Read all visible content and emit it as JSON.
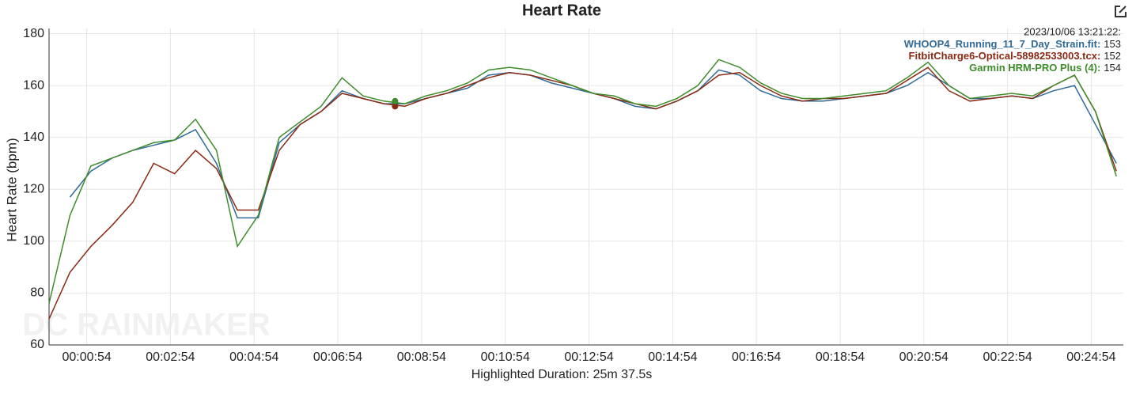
{
  "chart_data": {
    "type": "line",
    "title": "Heart Rate",
    "y_label": "Heart Rate (bpm)",
    "x_label": "Highlighted Duration: 25m 37.5s",
    "watermark": "DC RAINMAKER",
    "grid": true,
    "legend": "top-right",
    "xlim": [
      0,
      1540
    ],
    "ylim": [
      60,
      182
    ],
    "yticks": [
      60,
      80,
      100,
      120,
      140,
      160,
      180
    ],
    "xticks": [
      {
        "value": 54,
        "label": "00:00:54"
      },
      {
        "value": 174,
        "label": "00:02:54"
      },
      {
        "value": 294,
        "label": "00:04:54"
      },
      {
        "value": 414,
        "label": "00:06:54"
      },
      {
        "value": 534,
        "label": "00:08:54"
      },
      {
        "value": 654,
        "label": "00:10:54"
      },
      {
        "value": 774,
        "label": "00:12:54"
      },
      {
        "value": 894,
        "label": "00:14:54"
      },
      {
        "value": 1014,
        "label": "00:16:54"
      },
      {
        "value": 1134,
        "label": "00:18:54"
      },
      {
        "value": 1254,
        "label": "00:20:54"
      },
      {
        "value": 1374,
        "label": "00:22:54"
      },
      {
        "value": 1494,
        "label": "00:24:54"
      }
    ],
    "x": [
      0,
      30,
      60,
      90,
      120,
      150,
      180,
      210,
      240,
      270,
      300,
      330,
      360,
      390,
      420,
      450,
      480,
      510,
      540,
      570,
      600,
      630,
      660,
      690,
      720,
      750,
      780,
      810,
      840,
      870,
      900,
      930,
      960,
      990,
      1020,
      1050,
      1080,
      1110,
      1140,
      1170,
      1200,
      1230,
      1260,
      1290,
      1320,
      1350,
      1380,
      1410,
      1440,
      1470,
      1500,
      1530
    ],
    "series": [
      {
        "name": "WHOOP4_Running_11_7_Day_Strain.fit",
        "color": "#2f6b96",
        "values": [
          null,
          117,
          127,
          132,
          135,
          137,
          139,
          143,
          130,
          109,
          109,
          138,
          145,
          150,
          158,
          155,
          153,
          153,
          155,
          157,
          159,
          164,
          165,
          164,
          161,
          159,
          157,
          155,
          152,
          151,
          154,
          158,
          166,
          164,
          158,
          155,
          154,
          154,
          155,
          156,
          157,
          160,
          165,
          160,
          155,
          155,
          156,
          155,
          158,
          160,
          145,
          130
        ]
      },
      {
        "name": "FitbitCharge6-Optical-58982533003.tcx",
        "color": "#8b2a14",
        "values": [
          70,
          88,
          98,
          106,
          115,
          130,
          126,
          135,
          128,
          112,
          112,
          135,
          145,
          150,
          157,
          155,
          153,
          152,
          155,
          157,
          160,
          163,
          165,
          164,
          162,
          160,
          157,
          155,
          153,
          151,
          154,
          158,
          164,
          165,
          160,
          156,
          154,
          155,
          155,
          156,
          157,
          162,
          167,
          158,
          154,
          155,
          156,
          155,
          160,
          164,
          150,
          127
        ]
      },
      {
        "name": "Garmin HRM-PRO Plus (4)",
        "color": "#3f8c2b",
        "values": [
          76,
          110,
          129,
          132,
          135,
          138,
          139,
          147,
          135,
          98,
          110,
          140,
          146,
          152,
          163,
          156,
          154,
          153,
          156,
          158,
          161,
          166,
          167,
          166,
          163,
          160,
          157,
          156,
          153,
          152,
          155,
          160,
          170,
          167,
          161,
          157,
          155,
          155,
          156,
          157,
          158,
          163,
          169,
          160,
          155,
          156,
          157,
          156,
          160,
          164,
          150,
          125
        ]
      }
    ],
    "readout": {
      "time": "2023/10/06 13:21:22:",
      "separator": ":",
      "x": 496,
      "values": [
        153,
        152,
        154
      ]
    }
  }
}
